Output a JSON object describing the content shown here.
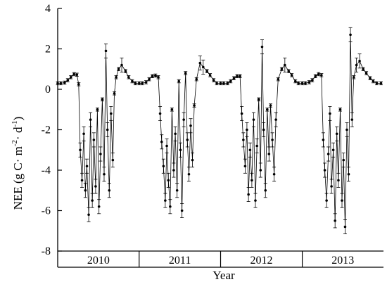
{
  "chart_data": {
    "type": "scatter",
    "title": "",
    "xlabel": "Year",
    "ylabel": {
      "base": "NEE (g C· m",
      "sup1": "-2",
      "mid": "· d",
      "sup2": "-1",
      "end": ")"
    },
    "ylim": [
      -8,
      4
    ],
    "yticks": [
      -8,
      -6,
      -4,
      -2,
      0,
      2,
      4
    ],
    "xlim": [
      "2010-01-01",
      "2013-12-31"
    ],
    "year_labels": [
      "2010",
      "2011",
      "2012",
      "2013"
    ],
    "grid": false,
    "legend": "none",
    "marker_color": "#000000",
    "error_bars": true,
    "series": [
      {
        "values": [
          {
            "x": "2010-01-01",
            "y": 0.3
          },
          {
            "x": "2010-01-15",
            "y": 0.3
          },
          {
            "x": "2010-02-01",
            "y": 0.33
          },
          {
            "x": "2010-02-15",
            "y": 0.45
          },
          {
            "x": "2010-03-01",
            "y": 0.6
          },
          {
            "x": "2010-03-15",
            "y": 0.75
          },
          {
            "x": "2010-03-28",
            "y": 0.72
          },
          {
            "x": "2010-04-05",
            "y": 0.25
          },
          {
            "x": "2010-04-12",
            "y": -3.0
          },
          {
            "x": "2010-04-20",
            "y": -4.5
          },
          {
            "x": "2010-04-28",
            "y": -2.2
          },
          {
            "x": "2010-05-05",
            "y": -5.0
          },
          {
            "x": "2010-05-12",
            "y": -3.8
          },
          {
            "x": "2010-05-20",
            "y": -6.2
          },
          {
            "x": "2010-05-28",
            "y": -1.5
          },
          {
            "x": "2010-06-05",
            "y": -5.5
          },
          {
            "x": "2010-06-12",
            "y": -2.5
          },
          {
            "x": "2010-06-20",
            "y": -4.8
          },
          {
            "x": "2010-06-28",
            "y": -1.0
          },
          {
            "x": "2010-07-05",
            "y": -5.8
          },
          {
            "x": "2010-07-12",
            "y": -3.2
          },
          {
            "x": "2010-07-20",
            "y": -0.5
          },
          {
            "x": "2010-07-28",
            "y": -4.2
          },
          {
            "x": "2010-08-05",
            "y": 1.9
          },
          {
            "x": "2010-08-12",
            "y": -2.0
          },
          {
            "x": "2010-08-20",
            "y": -5.0
          },
          {
            "x": "2010-08-28",
            "y": -1.2
          },
          {
            "x": "2010-09-05",
            "y": -3.5
          },
          {
            "x": "2010-09-12",
            "y": -0.2
          },
          {
            "x": "2010-09-20",
            "y": 0.6
          },
          {
            "x": "2010-10-01",
            "y": 1.0
          },
          {
            "x": "2010-10-15",
            "y": 1.2
          },
          {
            "x": "2010-11-01",
            "y": 0.9
          },
          {
            "x": "2010-11-15",
            "y": 0.6
          },
          {
            "x": "2010-12-01",
            "y": 0.4
          },
          {
            "x": "2010-12-15",
            "y": 0.3
          },
          {
            "x": "2011-01-01",
            "y": 0.3
          },
          {
            "x": "2011-01-15",
            "y": 0.3
          },
          {
            "x": "2011-02-01",
            "y": 0.35
          },
          {
            "x": "2011-02-15",
            "y": 0.5
          },
          {
            "x": "2011-03-01",
            "y": 0.65
          },
          {
            "x": "2011-03-15",
            "y": 0.68
          },
          {
            "x": "2011-03-28",
            "y": 0.6
          },
          {
            "x": "2011-04-05",
            "y": -1.2
          },
          {
            "x": "2011-04-12",
            "y": -2.6
          },
          {
            "x": "2011-04-20",
            "y": -3.8
          },
          {
            "x": "2011-04-28",
            "y": -5.5
          },
          {
            "x": "2011-05-05",
            "y": -2.8
          },
          {
            "x": "2011-05-12",
            "y": -4.5
          },
          {
            "x": "2011-05-20",
            "y": -5.8
          },
          {
            "x": "2011-05-28",
            "y": -1.0
          },
          {
            "x": "2011-06-05",
            "y": -4.0
          },
          {
            "x": "2011-06-12",
            "y": -2.2
          },
          {
            "x": "2011-06-20",
            "y": -5.0
          },
          {
            "x": "2011-06-28",
            "y": 0.4
          },
          {
            "x": "2011-07-05",
            "y": -3.0
          },
          {
            "x": "2011-07-12",
            "y": -6.0
          },
          {
            "x": "2011-07-20",
            "y": -1.5
          },
          {
            "x": "2011-07-28",
            "y": 0.8
          },
          {
            "x": "2011-08-05",
            "y": -2.5
          },
          {
            "x": "2011-08-12",
            "y": -4.2
          },
          {
            "x": "2011-08-20",
            "y": -1.8
          },
          {
            "x": "2011-08-28",
            "y": -3.5
          },
          {
            "x": "2011-09-05",
            "y": -0.8
          },
          {
            "x": "2011-09-15",
            "y": 0.5
          },
          {
            "x": "2011-10-01",
            "y": 1.3
          },
          {
            "x": "2011-10-15",
            "y": 1.1
          },
          {
            "x": "2011-11-01",
            "y": 0.9
          },
          {
            "x": "2011-11-15",
            "y": 0.7
          },
          {
            "x": "2011-12-01",
            "y": 0.45
          },
          {
            "x": "2011-12-15",
            "y": 0.3
          },
          {
            "x": "2012-01-01",
            "y": 0.3
          },
          {
            "x": "2012-01-15",
            "y": 0.3
          },
          {
            "x": "2012-02-01",
            "y": 0.3
          },
          {
            "x": "2012-02-15",
            "y": 0.4
          },
          {
            "x": "2012-03-01",
            "y": 0.55
          },
          {
            "x": "2012-03-15",
            "y": 0.65
          },
          {
            "x": "2012-03-28",
            "y": 0.65
          },
          {
            "x": "2012-04-05",
            "y": -1.2
          },
          {
            "x": "2012-04-12",
            "y": -2.5
          },
          {
            "x": "2012-04-20",
            "y": -3.8
          },
          {
            "x": "2012-04-28",
            "y": -2.0
          },
          {
            "x": "2012-05-05",
            "y": -5.2
          },
          {
            "x": "2012-05-12",
            "y": -3.0
          },
          {
            "x": "2012-05-20",
            "y": -4.5
          },
          {
            "x": "2012-05-28",
            "y": -1.5
          },
          {
            "x": "2012-06-05",
            "y": -5.5
          },
          {
            "x": "2012-06-12",
            "y": -2.8
          },
          {
            "x": "2012-06-20",
            "y": -0.5
          },
          {
            "x": "2012-06-28",
            "y": -4.0
          },
          {
            "x": "2012-07-05",
            "y": 2.1
          },
          {
            "x": "2012-07-12",
            "y": -2.0
          },
          {
            "x": "2012-07-20",
            "y": -5.0
          },
          {
            "x": "2012-07-28",
            "y": -1.0
          },
          {
            "x": "2012-08-05",
            "y": -3.2
          },
          {
            "x": "2012-08-12",
            "y": -0.8
          },
          {
            "x": "2012-08-20",
            "y": -2.5
          },
          {
            "x": "2012-08-28",
            "y": -4.2
          },
          {
            "x": "2012-09-05",
            "y": -1.5
          },
          {
            "x": "2012-09-15",
            "y": 0.5
          },
          {
            "x": "2012-10-01",
            "y": 1.0
          },
          {
            "x": "2012-10-15",
            "y": 1.2
          },
          {
            "x": "2012-11-01",
            "y": 0.9
          },
          {
            "x": "2012-11-15",
            "y": 0.7
          },
          {
            "x": "2012-12-01",
            "y": 0.4
          },
          {
            "x": "2012-12-15",
            "y": 0.3
          },
          {
            "x": "2013-01-01",
            "y": 0.3
          },
          {
            "x": "2013-01-15",
            "y": 0.3
          },
          {
            "x": "2013-02-01",
            "y": 0.35
          },
          {
            "x": "2013-02-15",
            "y": 0.45
          },
          {
            "x": "2013-03-01",
            "y": 0.65
          },
          {
            "x": "2013-03-15",
            "y": 0.75
          },
          {
            "x": "2013-03-28",
            "y": 0.7
          },
          {
            "x": "2013-04-05",
            "y": -2.5
          },
          {
            "x": "2013-04-12",
            "y": -4.0
          },
          {
            "x": "2013-04-20",
            "y": -5.5
          },
          {
            "x": "2013-04-28",
            "y": -3.2
          },
          {
            "x": "2013-05-05",
            "y": -1.2
          },
          {
            "x": "2013-05-12",
            "y": -4.8
          },
          {
            "x": "2013-05-20",
            "y": -3.0
          },
          {
            "x": "2013-05-28",
            "y": -6.5
          },
          {
            "x": "2013-06-05",
            "y": -2.2
          },
          {
            "x": "2013-06-12",
            "y": -4.5
          },
          {
            "x": "2013-06-20",
            "y": -1.0
          },
          {
            "x": "2013-06-28",
            "y": -5.5
          },
          {
            "x": "2013-07-05",
            "y": -3.5
          },
          {
            "x": "2013-07-12",
            "y": -6.8
          },
          {
            "x": "2013-07-20",
            "y": -2.0
          },
          {
            "x": "2013-07-28",
            "y": -4.2
          },
          {
            "x": "2013-08-05",
            "y": 2.7
          },
          {
            "x": "2013-08-12",
            "y": -1.5
          },
          {
            "x": "2013-08-20",
            "y": 0.6
          },
          {
            "x": "2013-09-01",
            "y": 1.2
          },
          {
            "x": "2013-09-15",
            "y": 1.4
          },
          {
            "x": "2013-10-01",
            "y": 1.0
          },
          {
            "x": "2013-10-15",
            "y": 0.8
          },
          {
            "x": "2013-11-01",
            "y": 0.55
          },
          {
            "x": "2013-11-15",
            "y": 0.4
          },
          {
            "x": "2013-12-01",
            "y": 0.3
          },
          {
            "x": "2013-12-20",
            "y": 0.3
          }
        ]
      }
    ]
  }
}
